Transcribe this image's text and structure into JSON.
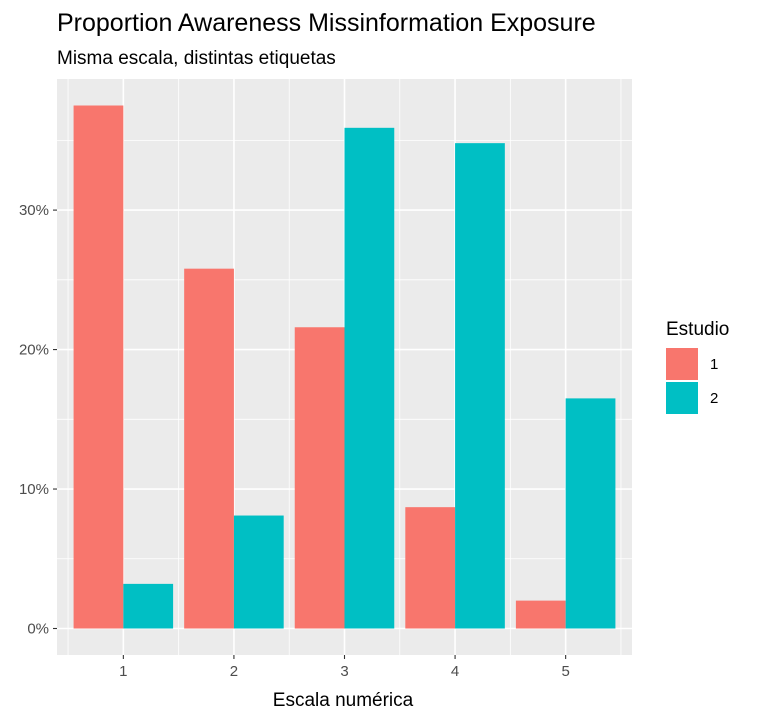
{
  "chart_data": {
    "type": "bar",
    "title": "Proportion Awareness Missinformation Exposure",
    "subtitle": "Misma escala, distintas etiquetas",
    "xlabel": "Escala numérica",
    "ylabel": "",
    "categories": [
      "1",
      "2",
      "3",
      "4",
      "5"
    ],
    "series": [
      {
        "name": "1",
        "color": "#F8766D",
        "values": [
          0.375,
          0.258,
          0.216,
          0.087,
          0.02
        ]
      },
      {
        "name": "2",
        "color": "#00BFC4",
        "values": [
          0.032,
          0.081,
          0.359,
          0.348,
          0.165
        ]
      }
    ],
    "ylim": [
      -0.019,
      0.394
    ],
    "y_ticks": [
      0,
      0.1,
      0.2,
      0.3
    ],
    "y_tick_labels": [
      "0%",
      "10%",
      "20%",
      "30%"
    ],
    "legend": {
      "title": "Estudio",
      "position": "right"
    },
    "grid": true,
    "panel_background": "#EBEBEB",
    "grid_color": "#FFFFFF"
  }
}
